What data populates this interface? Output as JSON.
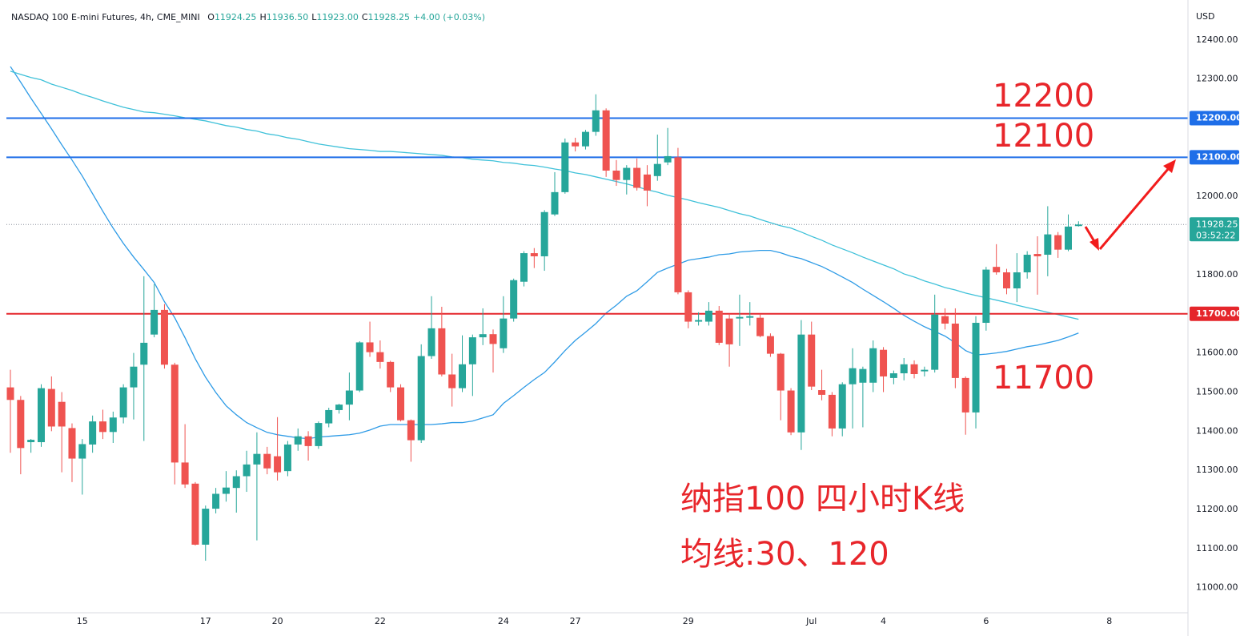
{
  "chart_data": {
    "type": "candlestick",
    "title": "NASDAQ 100 E-mini Futures, 4h, CME_MINI",
    "ohlc_legend": [
      {
        "key": "O",
        "value": "11924.25"
      },
      {
        "key": "H",
        "value": "11936.50"
      },
      {
        "key": "L",
        "value": "11923.00"
      },
      {
        "key": "C",
        "value": "11928.25"
      }
    ],
    "change": "+4.00 (+0.03%)",
    "currency": "USD",
    "up_color": "#26a69a",
    "down_color": "#ef5350",
    "categories": [
      null,
      null,
      null,
      null,
      null,
      null,
      null,
      "15",
      null,
      null,
      null,
      null,
      null,
      null,
      null,
      null,
      null,
      null,
      null,
      "17",
      null,
      null,
      null,
      null,
      null,
      null,
      "20",
      null,
      null,
      null,
      null,
      null,
      null,
      null,
      null,
      null,
      "22",
      null,
      null,
      null,
      null,
      null,
      null,
      null,
      null,
      null,
      null,
      null,
      "24",
      null,
      null,
      null,
      null,
      null,
      null,
      "27",
      null,
      null,
      null,
      null,
      null,
      null,
      null,
      null,
      null,
      null,
      "29",
      null,
      null,
      null,
      null,
      null,
      null,
      null,
      null,
      null,
      null,
      null,
      "Jul",
      null,
      null,
      null,
      null,
      null,
      null,
      "4",
      null,
      null,
      null,
      null,
      null,
      null,
      null,
      null,
      null,
      "6",
      null,
      null,
      null,
      null,
      null,
      null,
      null,
      null,
      null,
      null,
      null,
      "8",
      null,
      null,
      null,
      null,
      null,
      null,
      null
    ],
    "open": [
      11512,
      11480,
      11372,
      11372,
      11508,
      11475,
      11408,
      11330,
      11366,
      11425,
      11398,
      11435,
      11512,
      11570,
      11647,
      11710,
      11570,
      11320,
      11266,
      11110,
      11202,
      11240,
      11255,
      11285,
      11315,
      11342,
      11336,
      11298,
      11366,
      11387,
      11362,
      11420,
      11454,
      11468,
      11504,
      11627,
      11602,
      11577,
      11512,
      11428,
      11377,
      11592,
      11663,
      11545,
      11510,
      11571,
      11640,
      11648,
      11612,
      11688,
      11782,
      11855,
      11847,
      11954,
      12011,
      12138,
      12128,
      12165,
      12220,
      12066,
      12042,
      12073,
      12056,
      12052,
      12087,
      12100,
      11755,
      11680,
      11680,
      11708,
      11688,
      11688,
      11690,
      11690,
      11643,
      11598,
      11504,
      11397,
      11647,
      11505,
      11493,
      11407,
      11520,
      11524,
      11524,
      11608,
      11536,
      11548,
      11571,
      11553,
      11557,
      11694,
      11675,
      11536,
      11448,
      11677,
      11820,
      11806,
      11765,
      11806,
      11853,
      11851,
      11901,
      11864,
      11924.25,
      null,
      null,
      null,
      null,
      null,
      null,
      null,
      null,
      null,
      null
    ],
    "high": [
      11557,
      11490,
      11380,
      11520,
      11540,
      11500,
      11420,
      11380,
      11440,
      11455,
      11450,
      11520,
      11600,
      11796,
      11776,
      11725,
      11575,
      11418,
      11270,
      11210,
      11255,
      11298,
      11300,
      11350,
      11397,
      11360,
      11436,
      11375,
      11407,
      11400,
      11425,
      11460,
      11470,
      11550,
      11630,
      11680,
      11632,
      11580,
      11520,
      11430,
      11622,
      11745,
      11718,
      11598,
      11645,
      11647,
      11714,
      11660,
      11745,
      11790,
      11860,
      11868,
      11965,
      12062,
      12148,
      12150,
      12170,
      12261,
      12225,
      12093,
      12080,
      12097,
      12080,
      12158,
      12175,
      12124,
      11760,
      11704,
      11730,
      11720,
      11700,
      11749,
      11730,
      11700,
      11650,
      11600,
      11510,
      11684,
      11680,
      11557,
      11500,
      11525,
      11612,
      11565,
      11632,
      11615,
      11555,
      11587,
      11581,
      11565,
      11749,
      11714,
      11714,
      11540,
      11694,
      11820,
      11878,
      11815,
      11855,
      11860,
      11898,
      11975,
      11909,
      11954,
      11936.5,
      null,
      null,
      null,
      null,
      null,
      null,
      null,
      null,
      null,
      null
    ],
    "low": [
      11345,
      11290,
      11345,
      11360,
      11400,
      11295,
      11270,
      11238,
      11345,
      11380,
      11370,
      11420,
      11430,
      11375,
      11640,
      11560,
      11264,
      11255,
      11108,
      11069,
      11190,
      11220,
      11192,
      11245,
      11121,
      11290,
      11274,
      11285,
      11350,
      11325,
      11355,
      11410,
      11445,
      11428,
      11500,
      11590,
      11560,
      11500,
      11425,
      11322,
      11370,
      11585,
      11540,
      11463,
      11500,
      11490,
      11620,
      11550,
      11600,
      11680,
      11770,
      11817,
      11810,
      11950,
      12007,
      12115,
      12120,
      12155,
      12050,
      12027,
      12005,
      12015,
      11975,
      12040,
      12080,
      11750,
      11663,
      11670,
      11670,
      11620,
      11565,
      11618,
      11670,
      11640,
      11590,
      11428,
      11390,
      11352,
      11505,
      11479,
      11387,
      11387,
      11407,
      11410,
      11500,
      11500,
      11520,
      11530,
      11535,
      11540,
      11550,
      11660,
      11510,
      11391,
      11407,
      11657,
      11800,
      11750,
      11730,
      11790,
      11749,
      11796,
      11843,
      11860,
      11923,
      null,
      null,
      null,
      null,
      null,
      null,
      null,
      null,
      null,
      null
    ],
    "close": [
      11480,
      11357,
      11378,
      11510,
      11412,
      11412,
      11330,
      11367,
      11425,
      11398,
      11435,
      11512,
      11565,
      11626,
      11710,
      11570,
      11320,
      11264,
      11110,
      11202,
      11240,
      11256,
      11285,
      11315,
      11342,
      11305,
      11295,
      11366,
      11387,
      11362,
      11421,
      11454,
      11468,
      11504,
      11627,
      11602,
      11577,
      11512,
      11428,
      11377,
      11592,
      11663,
      11545,
      11510,
      11571,
      11640,
      11648,
      11623,
      11688,
      11786,
      11855,
      11847,
      11960,
      12011,
      12138,
      12128,
      12165,
      12220,
      12066,
      12042,
      12073,
      12022,
      12015,
      12083,
      12103,
      11755,
      11680,
      11684,
      11708,
      11626,
      11622,
      11692,
      11694,
      11643,
      11598,
      11504,
      11397,
      11647,
      11514,
      11493,
      11407,
      11520,
      11561,
      11559,
      11612,
      11540,
      11548,
      11571,
      11546,
      11557,
      11698,
      11675,
      11536,
      11448,
      11677,
      11813,
      11806,
      11765,
      11806,
      11851,
      11847,
      11903,
      11864,
      11923,
      11928.25,
      null,
      null,
      null,
      null,
      null,
      null,
      null,
      null,
      null,
      null
    ],
    "lines": [
      {
        "color": "#2e9be6",
        "values": [
          12332,
          12292,
          12251,
          12212,
          12173,
          12132,
          12093,
          12052,
          12007,
          11962,
          11919,
          11880,
          11845,
          11813,
          11780,
          11731,
          11690,
          11639,
          11585,
          11538,
          11499,
          11465,
          11442,
          11422,
          11409,
          11397,
          11391,
          11387,
          11383,
          11381,
          11385,
          11387,
          11389,
          11391,
          11395,
          11403,
          11413,
          11417,
          11417,
          11417,
          11417,
          11417,
          11419,
          11422,
          11422,
          11426,
          11434,
          11442,
          11471,
          11491,
          11512,
          11532,
          11550,
          11577,
          11606,
          11632,
          11653,
          11675,
          11702,
          11722,
          11745,
          11759,
          11782,
          11806,
          11817,
          11827,
          11837,
          11841,
          11845,
          11851,
          11853,
          11858,
          11860,
          11862,
          11862,
          11856,
          11847,
          11841,
          11831,
          11821,
          11808,
          11794,
          11780,
          11763,
          11747,
          11731,
          11714,
          11696,
          11681,
          11667,
          11655,
          11643,
          11626,
          11606,
          11595,
          11597,
          11600,
          11604,
          11610,
          11616,
          11620,
          11626,
          11632,
          11641,
          11651,
          null,
          null,
          null,
          null,
          null,
          null,
          null,
          null,
          null,
          null
        ]
      },
      {
        "color": "#3fc1d9",
        "values": [
          12320,
          12312,
          12304,
          12298,
          12287,
          12279,
          12271,
          12261,
          12253,
          12244,
          12236,
          12228,
          12222,
          12216,
          12214,
          12210,
          12206,
          12201,
          12197,
          12193,
          12187,
          12181,
          12177,
          12171,
          12167,
          12160,
          12156,
          12150,
          12146,
          12140,
          12134,
          12130,
          12126,
          12122,
          12120,
          12118,
          12115,
          12115,
          12113,
          12111,
          12109,
          12107,
          12105,
          12101,
          12099,
          12095,
          12093,
          12091,
          12087,
          12085,
          12081,
          12079,
          12075,
          12070,
          12066,
          12060,
          12056,
          12050,
          12044,
          12038,
          12032,
          12025,
          12017,
          12011,
          12003,
          11997,
          11991,
          11984,
          11978,
          11972,
          11964,
          11956,
          11950,
          11941,
          11933,
          11925,
          11919,
          11909,
          11898,
          11888,
          11876,
          11866,
          11856,
          11845,
          11835,
          11825,
          11815,
          11802,
          11794,
          11784,
          11776,
          11767,
          11761,
          11753,
          11747,
          11741,
          11735,
          11729,
          11722,
          11716,
          11710,
          11704,
          11698,
          11692,
          11686,
          null,
          null,
          null,
          null,
          null,
          null,
          null,
          null,
          null,
          null
        ]
      }
    ],
    "ylim": [
      10936,
      12502
    ],
    "yticks": [
      {
        "value": 11000,
        "label": "11000.00"
      },
      {
        "value": 11100,
        "label": "11100.00"
      },
      {
        "value": 11200,
        "label": "11200.00"
      },
      {
        "value": 11300,
        "label": "11300.00"
      },
      {
        "value": 11400,
        "label": "11400.00"
      },
      {
        "value": 11500,
        "label": "11500.00"
      },
      {
        "value": 11600,
        "label": "11600.00"
      },
      {
        "value": 11700,
        "label": "11700.00"
      },
      {
        "value": 11800,
        "label": "11800.00"
      },
      {
        "value": 11900,
        "label": "11900.00"
      },
      {
        "value": 12000,
        "label": "12000.00"
      },
      {
        "value": 12100,
        "label": "12100.00"
      },
      {
        "value": 12200,
        "label": "12200.00"
      },
      {
        "value": 12300,
        "label": "12300.00"
      },
      {
        "value": 12400,
        "label": "12400.00"
      }
    ],
    "grid": false,
    "levels": [
      {
        "value": 12200,
        "label": "12200.00",
        "color": "#1e6ee8"
      },
      {
        "value": 12100,
        "label": "12100.00",
        "color": "#1e6ee8"
      },
      {
        "value": 11700,
        "label": "11700.00",
        "color": "#e5262b"
      }
    ],
    "last_price": {
      "value": 11928.25,
      "label": "11928.25",
      "countdown": "03:52:22",
      "color": "#26a69a"
    },
    "annotations": [
      "12200",
      "12100",
      "11700",
      "纳指100 四小时K线",
      "均线:30、120"
    ]
  }
}
